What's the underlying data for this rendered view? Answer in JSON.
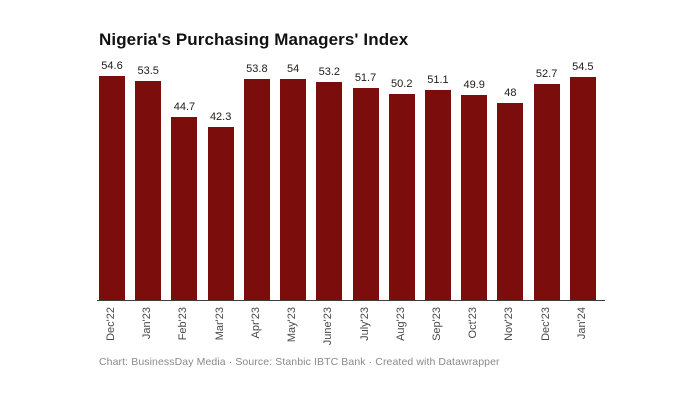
{
  "page": {
    "background": "#ffffff"
  },
  "chart": {
    "title": "Nigeria's Purchasing Managers' Index",
    "footer": "Chart: BusinessDay Media · Source: Stanbic IBTC Bank  · Created with Datawrapper"
  },
  "chart_data": {
    "type": "bar",
    "title": "Nigeria's Purchasing Managers' Index",
    "categories": [
      "Dec'22",
      "Jan'23",
      "Feb'23",
      "Mar'23",
      "Apr'23",
      "May'23",
      "June'23",
      "July'23",
      "Aug'23",
      "Sep'23",
      "Oct'23",
      "Nov'23",
      "Dec'23",
      "Jan'24"
    ],
    "values": [
      54.6,
      53.5,
      44.7,
      42.3,
      53.8,
      54,
      53.2,
      51.7,
      50.2,
      51.1,
      49.9,
      48,
      52.7,
      54.5
    ],
    "value_labels": [
      "54.6",
      "53.5",
      "44.7",
      "42.3",
      "53.8",
      "54",
      "53.2",
      "51.7",
      "50.2",
      "51.1",
      "49.9",
      "48",
      "52.7",
      "54.5"
    ],
    "bar_color": "#7b0d0d",
    "value_label_color": "#202020",
    "tick_label_color": "#494949",
    "axis_line_color": "#3d3d3d",
    "xlabel": "",
    "ylabel": "",
    "ylim": [
      0,
      60
    ],
    "grid": false,
    "legend": false,
    "tick_labels_rotated_degrees": -90,
    "footer": "Chart: BusinessDay Media · Source: Stanbic IBTC Bank  · Created with Datawrapper"
  }
}
